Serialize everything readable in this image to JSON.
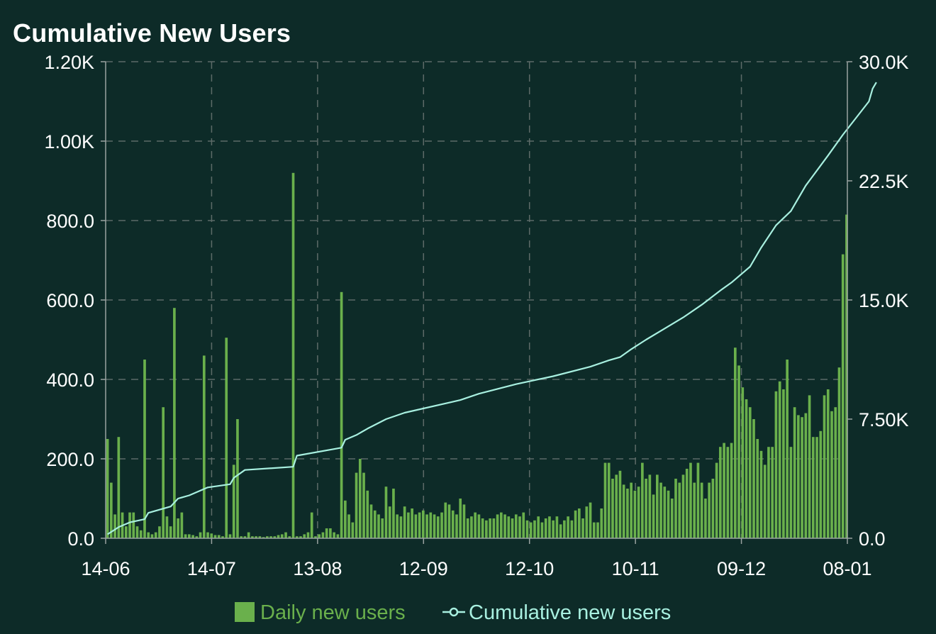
{
  "chart_data": {
    "type": "bar+line",
    "title": "Cumulative New Users",
    "x_tick_labels": [
      "14-06",
      "14-07",
      "13-08",
      "12-09",
      "12-10",
      "10-11",
      "09-12",
      "08-01"
    ],
    "y_left": {
      "ticks": [
        "0.0",
        "200.0",
        "400.0",
        "600.0",
        "800.0",
        "1.00K",
        "1.20K"
      ],
      "ylim": [
        0,
        1200
      ]
    },
    "y_right": {
      "ticks": [
        "0.0",
        "7.50K",
        "15.0K",
        "22.5K",
        "30.0K"
      ],
      "ylim": [
        0,
        30000
      ]
    },
    "grid": true,
    "legend_position": "bottom-center",
    "colors": {
      "bar": "#6ab04c",
      "line": "#a8f0e0",
      "background": "#0d2b28",
      "grid": "#5d6b68"
    },
    "series": [
      {
        "name": "Daily new users",
        "kind": "bar",
        "axis": "left",
        "values": [
          250,
          140,
          60,
          255,
          65,
          30,
          65,
          65,
          30,
          20,
          450,
          15,
          10,
          15,
          30,
          330,
          55,
          30,
          580,
          50,
          65,
          10,
          10,
          8,
          5,
          15,
          460,
          15,
          12,
          8,
          8,
          5,
          505,
          10,
          185,
          300,
          5,
          5,
          15,
          5,
          5,
          5,
          3,
          5,
          5,
          5,
          8,
          10,
          15,
          5,
          920,
          5,
          5,
          10,
          15,
          65,
          5,
          10,
          15,
          25,
          25,
          15,
          10,
          620,
          95,
          60,
          40,
          165,
          200,
          165,
          120,
          85,
          70,
          60,
          50,
          130,
          80,
          125,
          60,
          55,
          80,
          65,
          75,
          60,
          65,
          70,
          60,
          65,
          60,
          55,
          65,
          90,
          85,
          70,
          60,
          100,
          85,
          50,
          55,
          65,
          60,
          50,
          45,
          50,
          50,
          60,
          65,
          60,
          55,
          50,
          60,
          55,
          65,
          45,
          40,
          45,
          55,
          40,
          50,
          55,
          45,
          55,
          35,
          45,
          55,
          45,
          70,
          75,
          50,
          80,
          90,
          40,
          40,
          75,
          190,
          190,
          150,
          160,
          170,
          135,
          125,
          140,
          120,
          130,
          190,
          150,
          160,
          110,
          160,
          140,
          130,
          120,
          100,
          150,
          140,
          160,
          175,
          190,
          140,
          190,
          140,
          100,
          140,
          150,
          190,
          230,
          240,
          230,
          240,
          480,
          435,
          380,
          350,
          330,
          300,
          250,
          220,
          185,
          230,
          230,
          370,
          395,
          375,
          450,
          230,
          330,
          310,
          305,
          315,
          360,
          255,
          255,
          270,
          360,
          375,
          320,
          330,
          430,
          715,
          815
        ]
      },
      {
        "name": "Cumulative new users",
        "kind": "line",
        "axis": "right",
        "points": [
          [
            0,
            250
          ],
          [
            3,
            700
          ],
          [
            6,
            1000
          ],
          [
            10,
            1200
          ],
          [
            11,
            1600
          ],
          [
            17,
            2000
          ],
          [
            19,
            2500
          ],
          [
            22,
            2700
          ],
          [
            27,
            3200
          ],
          [
            33,
            3400
          ],
          [
            34,
            3800
          ],
          [
            37,
            4300
          ],
          [
            50,
            4500
          ],
          [
            51,
            5200
          ],
          [
            63,
            5700
          ],
          [
            64,
            6200
          ],
          [
            67,
            6500
          ],
          [
            70,
            6900
          ],
          [
            75,
            7500
          ],
          [
            80,
            7900
          ],
          [
            95,
            8700
          ],
          [
            100,
            9100
          ],
          [
            110,
            9700
          ],
          [
            120,
            10200
          ],
          [
            130,
            10800
          ],
          [
            135,
            11200
          ],
          [
            138,
            11400
          ],
          [
            141,
            11900
          ],
          [
            145,
            12500
          ],
          [
            150,
            13200
          ],
          [
            155,
            13900
          ],
          [
            160,
            14700
          ],
          [
            165,
            15600
          ],
          [
            168,
            16100
          ],
          [
            173,
            17100
          ],
          [
            176,
            18300
          ],
          [
            180,
            19700
          ],
          [
            184,
            20600
          ],
          [
            188,
            22200
          ],
          [
            194,
            24100
          ],
          [
            198,
            25400
          ],
          [
            205,
            27500
          ],
          [
            206,
            28300
          ],
          [
            207,
            28700
          ]
        ]
      }
    ]
  }
}
